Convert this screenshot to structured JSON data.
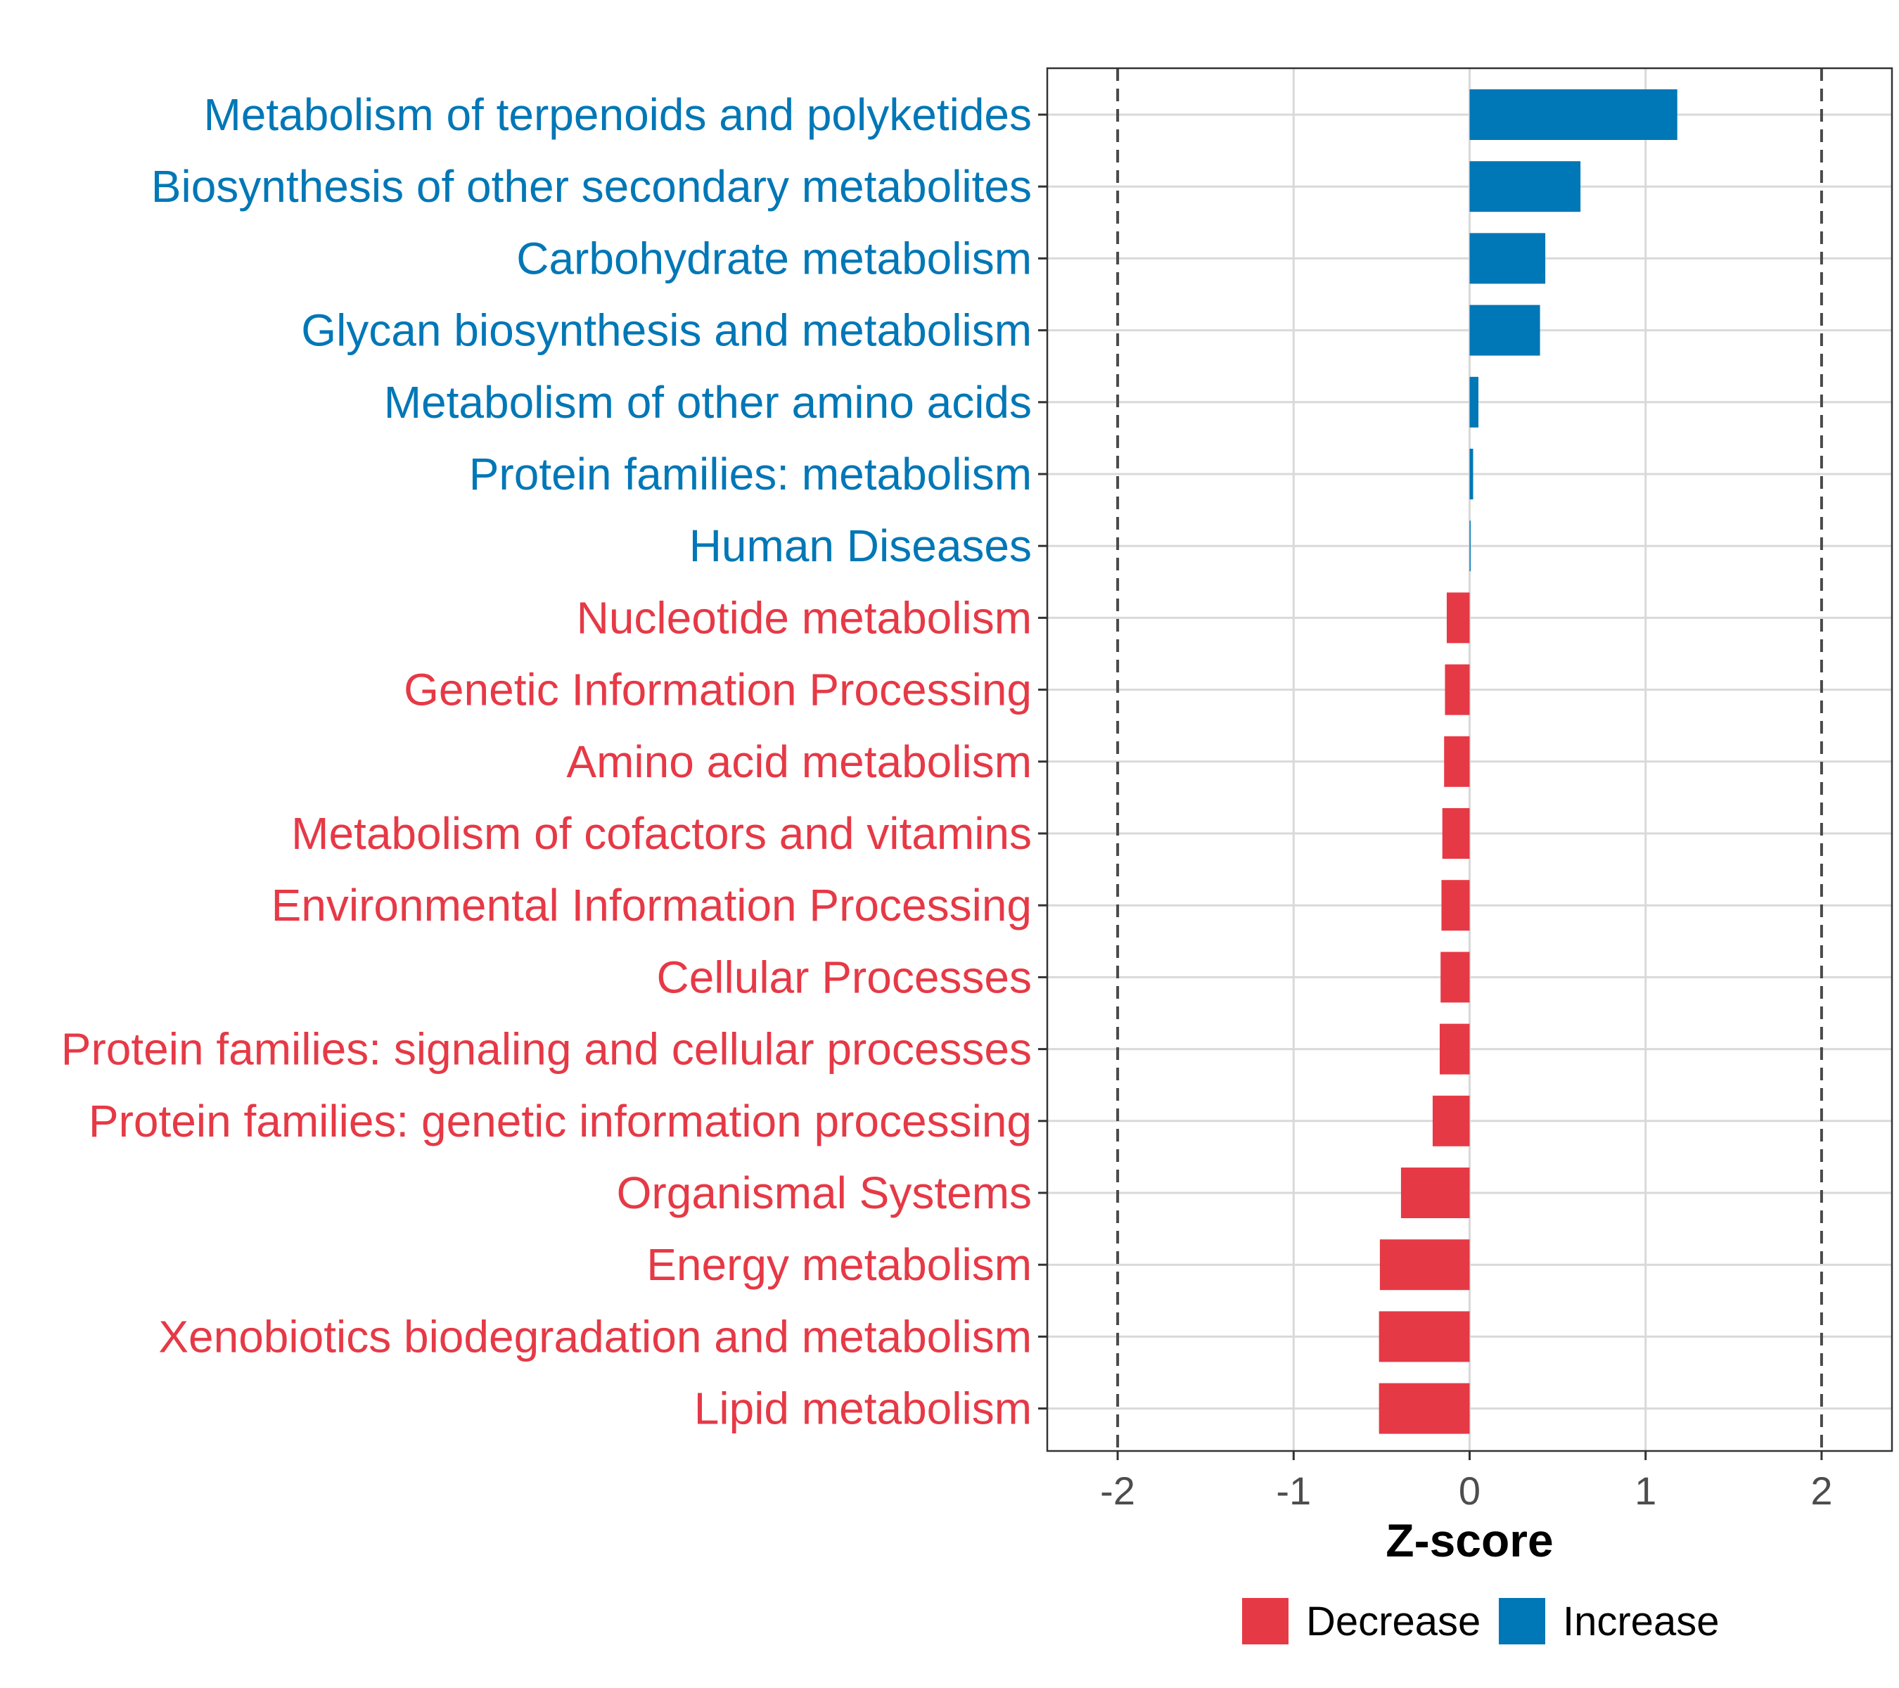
{
  "chart_data": {
    "type": "bar",
    "orientation": "horizontal",
    "title": "",
    "xlabel": "Z-score",
    "ylabel": "",
    "xlim": [
      -2.4,
      2.4
    ],
    "xticks": [
      -2,
      -1,
      0,
      1,
      2
    ],
    "xtick_labels": [
      "-2",
      "-1",
      "0",
      "1",
      "2"
    ],
    "reference_lines": [
      -2,
      2
    ],
    "grid": true,
    "legend": {
      "position": "bottom",
      "entries": [
        {
          "key": "Decrease",
          "label": "Decrease",
          "color": "#E63946"
        },
        {
          "key": "Increase",
          "label": "Increase",
          "color": "#0077B6"
        }
      ]
    },
    "categories": [
      "Metabolism of terpenoids and polyketides",
      "Biosynthesis of other secondary metabolites",
      "Carbohydrate metabolism",
      "Glycan biosynthesis and metabolism",
      "Metabolism of other amino acids",
      "Protein families: metabolism",
      "Human Diseases",
      "Nucleotide metabolism",
      "Genetic Information Processing",
      "Amino acid metabolism",
      "Metabolism of cofactors and vitamins",
      "Environmental Information Processing",
      "Cellular Processes",
      "Protein families: signaling and cellular processes",
      "Protein families: genetic information processing",
      "Organismal Systems",
      "Energy metabolism",
      "Xenobiotics biodegradation and metabolism",
      "Lipid metabolism"
    ],
    "values": [
      1.18,
      0.63,
      0.43,
      0.4,
      0.05,
      0.02,
      0.005,
      -0.13,
      -0.14,
      -0.145,
      -0.155,
      -0.16,
      -0.165,
      -0.17,
      -0.21,
      -0.39,
      -0.51,
      -0.515,
      -0.515
    ],
    "groups": [
      "Increase",
      "Increase",
      "Increase",
      "Increase",
      "Increase",
      "Increase",
      "Increase",
      "Decrease",
      "Decrease",
      "Decrease",
      "Decrease",
      "Decrease",
      "Decrease",
      "Decrease",
      "Decrease",
      "Decrease",
      "Decrease",
      "Decrease",
      "Decrease"
    ]
  }
}
